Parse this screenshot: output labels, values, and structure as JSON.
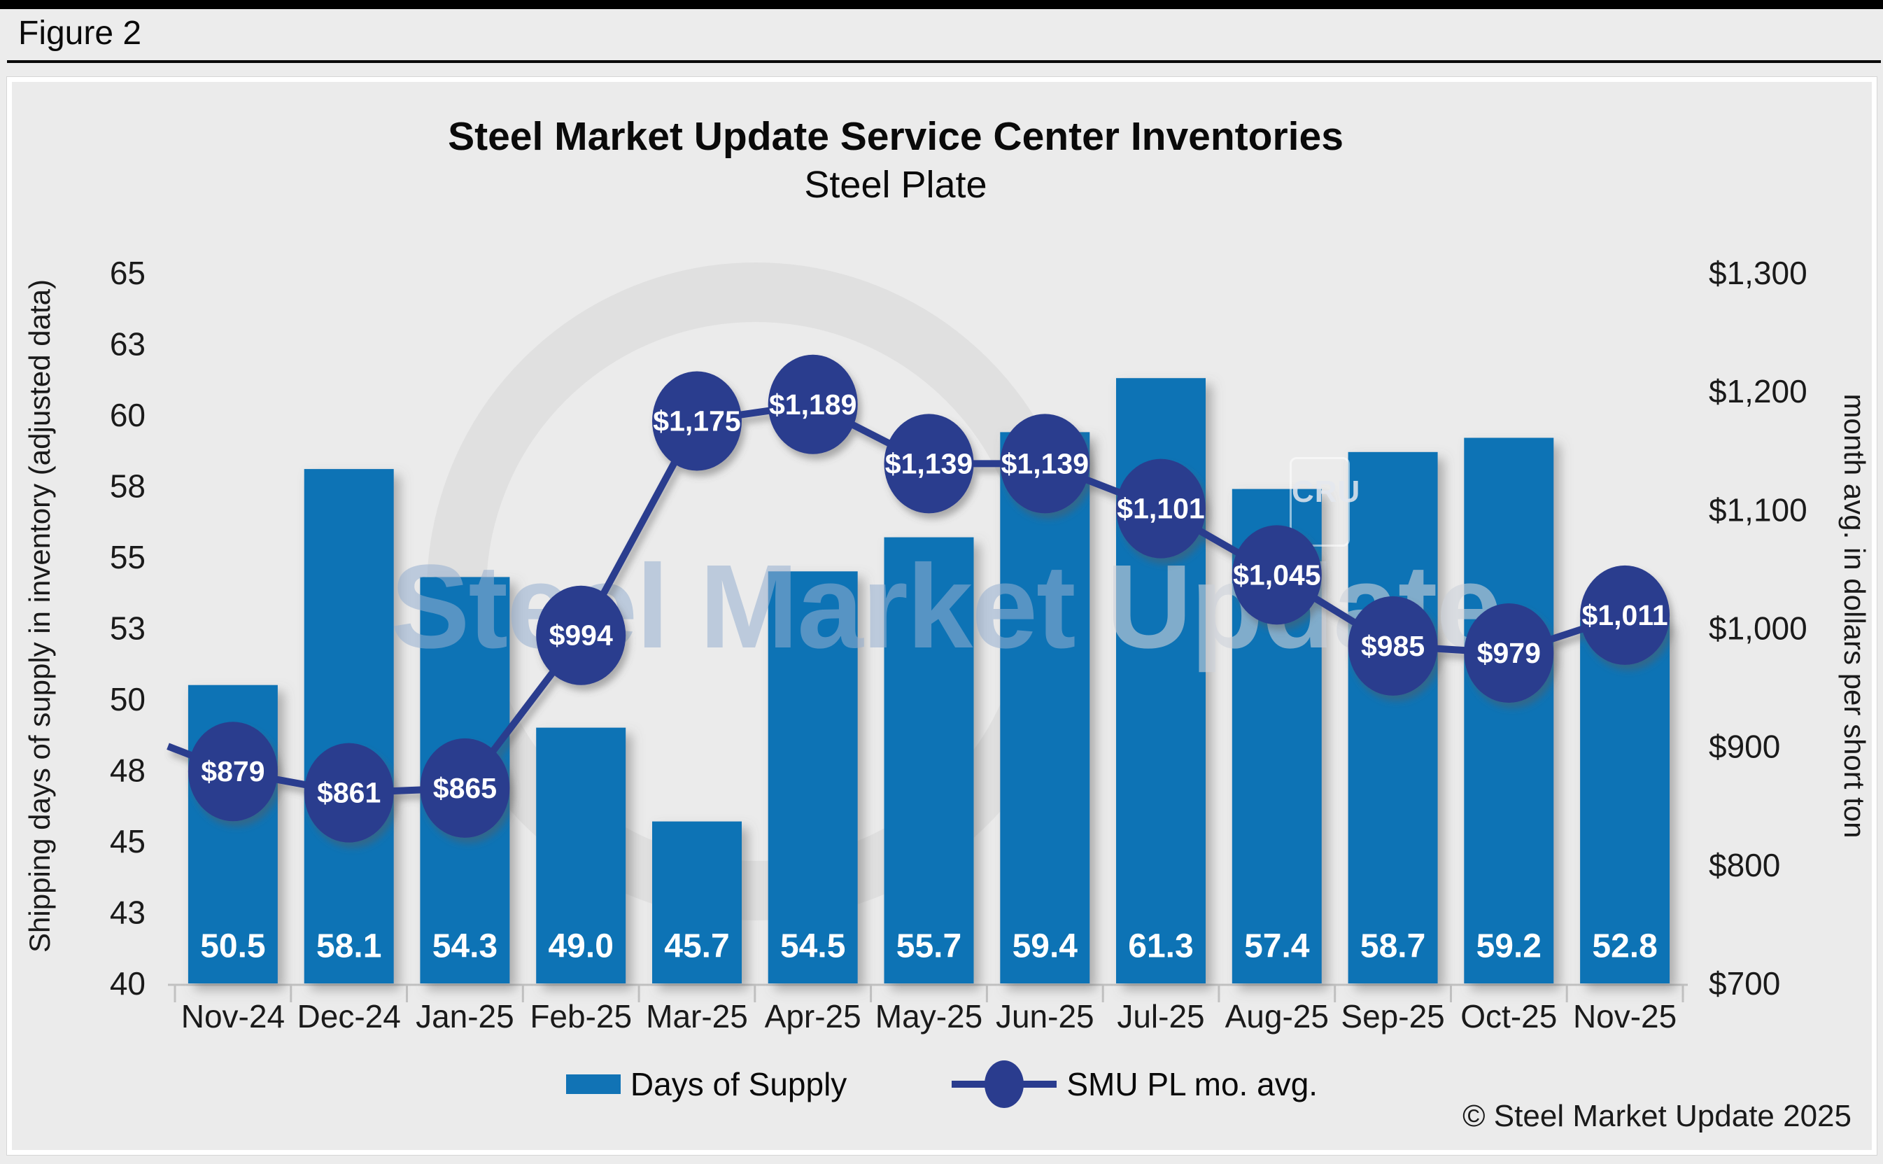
{
  "figure_label": "Figure 2",
  "title": "Steel Market Update Service Center Inventories",
  "subtitle": "Steel Plate",
  "watermark": {
    "text_primary": "Steel Market",
    "text_secondary": " Update",
    "cru_label": "CRU"
  },
  "left_axis": {
    "title": "Shipping days of supply in inventory (adjusted data)",
    "tick_labels": [
      "65",
      "63",
      "60",
      "58",
      "55",
      "53",
      "50",
      "48",
      "45",
      "43",
      "40"
    ]
  },
  "right_axis": {
    "title": "month avg. in dollars per short ton",
    "tick_labels": [
      "$1,300",
      "$1,200",
      "$1,100",
      "$1,000",
      "$900",
      "$800",
      "$700"
    ]
  },
  "legend": {
    "items": [
      {
        "label": "Days of Supply"
      },
      {
        "label": "SMU PL mo. avg."
      }
    ]
  },
  "copyright": "© Steel Market Update 2025",
  "colors": {
    "bar_blue": "#1173b5",
    "navy": "#2a3c8e",
    "axis_line_gray": "#c1c1c1",
    "axis_text": "#1a1a1a",
    "page_bg": "#ececec",
    "plot_bg": "#ebebeb",
    "data_label_white": "#ffffff"
  },
  "chart_data": {
    "type": "bar+line",
    "title": "Steel Market Update Service Center Inventories",
    "subtitle": "Steel Plate",
    "categories": [
      "Nov-24",
      "Dec-24",
      "Jan-25",
      "Feb-25",
      "Mar-25",
      "Apr-25",
      "May-25",
      "Jun-25",
      "Jul-25",
      "Aug-25",
      "Sep-25",
      "Oct-25",
      "Nov-25"
    ],
    "series": [
      {
        "name": "Days of Supply",
        "type": "bar",
        "axis": "left",
        "values": [
          50.5,
          58.1,
          54.3,
          49.0,
          45.7,
          54.5,
          55.7,
          59.4,
          61.3,
          57.4,
          58.7,
          59.2,
          52.8
        ],
        "data_labels": [
          "50.5",
          "58.1",
          "54.3",
          "49.0",
          "45.7",
          "54.5",
          "55.7",
          "59.4",
          "61.3",
          "57.4",
          "58.7",
          "59.2",
          "52.8"
        ]
      },
      {
        "name": "SMU PL mo. avg.",
        "type": "line",
        "axis": "right",
        "values": [
          879,
          861,
          865,
          994,
          1175,
          1189,
          1139,
          1139,
          1101,
          1045,
          985,
          979,
          1011
        ],
        "data_labels": [
          "$879",
          "$861",
          "$865",
          "$994",
          "$1,175",
          "$1,189",
          "$1,139",
          "$1,139",
          "$1,101",
          "$1,045",
          "$985",
          "$979",
          "$1,011"
        ]
      }
    ],
    "left_ylabel": "Shipping days of supply in inventory (adjusted data)",
    "right_ylabel": "month avg. in dollars per short ton",
    "left_ylim": [
      40,
      65
    ],
    "right_ylim": [
      700,
      1300
    ],
    "grid": false,
    "legend_position": "bottom"
  }
}
